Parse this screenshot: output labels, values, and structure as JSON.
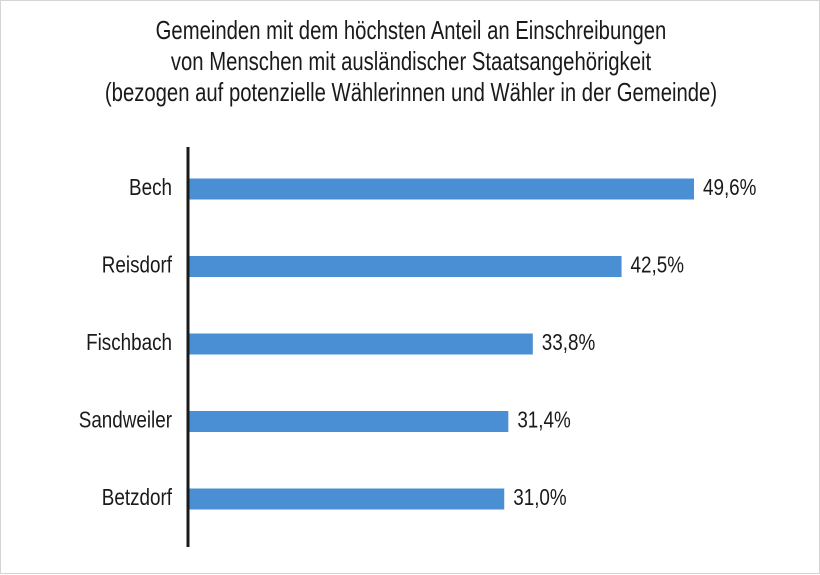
{
  "chart_data": {
    "type": "bar",
    "orientation": "horizontal",
    "title_lines": [
      "Gemeinden mit dem höchsten Anteil an Einschreibungen",
      "von Menschen mit ausländischer Staatsangehörigkeit",
      "(bezogen auf potenzielle Wählerinnen und Wähler in der Gemeinde)"
    ],
    "categories": [
      "Bech",
      "Reisdorf",
      "Fischbach",
      "Sandweiler",
      "Betzdorf"
    ],
    "values": [
      49.6,
      42.5,
      33.8,
      31.4,
      31.0
    ],
    "value_labels": [
      "49,6%",
      "42,5%",
      "33,8%",
      "31,4%",
      "31,0%"
    ],
    "unit": "%",
    "xlim": [
      0,
      49.6
    ],
    "xlabel": "",
    "ylabel": "",
    "grid": false,
    "bar_color": "#4a8fd4",
    "axis_color": "#1a1a1a"
  }
}
